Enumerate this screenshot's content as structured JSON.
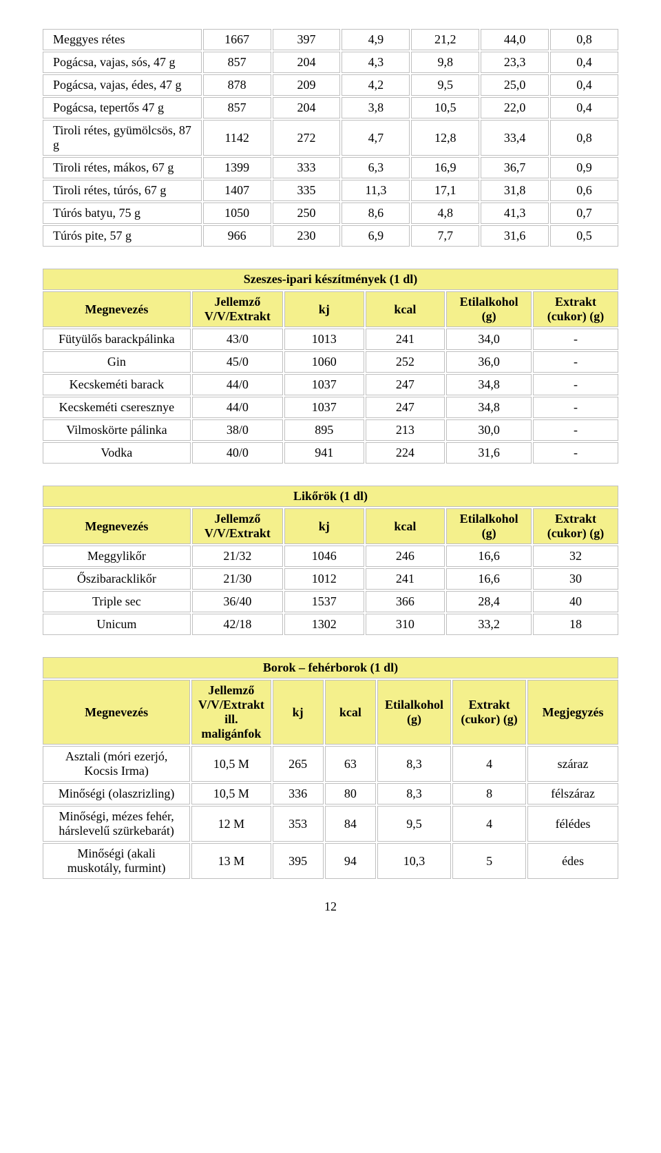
{
  "table1": {
    "rows": [
      {
        "name": "Meggyes rétes",
        "c1": "1667",
        "c2": "397",
        "c3": "4,9",
        "c4": "21,2",
        "c5": "44,0",
        "c6": "0,8"
      },
      {
        "name": "Pogácsa, vajas, sós, 47 g",
        "c1": "857",
        "c2": "204",
        "c3": "4,3",
        "c4": "9,8",
        "c5": "23,3",
        "c6": "0,4"
      },
      {
        "name": "Pogácsa, vajas, édes, 47 g",
        "c1": "878",
        "c2": "209",
        "c3": "4,2",
        "c4": "9,5",
        "c5": "25,0",
        "c6": "0,4"
      },
      {
        "name": "Pogácsa, tepertős 47 g",
        "c1": "857",
        "c2": "204",
        "c3": "3,8",
        "c4": "10,5",
        "c5": "22,0",
        "c6": "0,4"
      },
      {
        "name": "Tiroli rétes, gyümölcsös, 87 g",
        "c1": "1142",
        "c2": "272",
        "c3": "4,7",
        "c4": "12,8",
        "c5": "33,4",
        "c6": "0,8"
      },
      {
        "name": "Tiroli  rétes, mákos, 67 g",
        "c1": "1399",
        "c2": "333",
        "c3": "6,3",
        "c4": "16,9",
        "c5": "36,7",
        "c6": "0,9"
      },
      {
        "name": "Tiroli rétes, túrós, 67 g",
        "c1": "1407",
        "c2": "335",
        "c3": "11,3",
        "c4": "17,1",
        "c5": "31,8",
        "c6": "0,6"
      },
      {
        "name": "Túrós batyu, 75 g",
        "c1": "1050",
        "c2": "250",
        "c3": "8,6",
        "c4": "4,8",
        "c5": "41,3",
        "c6": "0,7"
      },
      {
        "name": "Túrós pite, 57 g",
        "c1": "966",
        "c2": "230",
        "c3": "6,9",
        "c4": "7,7",
        "c5": "31,6",
        "c6": "0,5"
      }
    ]
  },
  "table2": {
    "title": "Szeszes-ipari készítmények (1 dl)",
    "headers": {
      "h1": "Megnevezés",
      "h2": "Jellemző V/V/Extrakt",
      "h3": "kj",
      "h4": "kcal",
      "h5": "Etilalkohol (g)",
      "h6": "Extrakt (cukor) (g)"
    },
    "rows": [
      {
        "name": "Fütyülős barackpálinka",
        "c1": "43/0",
        "c2": "1013",
        "c3": "241",
        "c4": "34,0",
        "c5": "-"
      },
      {
        "name": "Gin",
        "c1": "45/0",
        "c2": "1060",
        "c3": "252",
        "c4": "36,0",
        "c5": "-"
      },
      {
        "name": "Kecskeméti barack",
        "c1": "44/0",
        "c2": "1037",
        "c3": "247",
        "c4": "34,8",
        "c5": "-"
      },
      {
        "name": "Kecskeméti cseresznye",
        "c1": "44/0",
        "c2": "1037",
        "c3": "247",
        "c4": "34,8",
        "c5": "-"
      },
      {
        "name": "Vilmoskörte pálinka",
        "c1": "38/0",
        "c2": "895",
        "c3": "213",
        "c4": "30,0",
        "c5": "-"
      },
      {
        "name": "Vodka",
        "c1": "40/0",
        "c2": "941",
        "c3": "224",
        "c4": "31,6",
        "c5": "-"
      }
    ]
  },
  "table3": {
    "title": "Likőrök (1 dl)",
    "headers": {
      "h1": "Megnevezés",
      "h2": "Jellemző V/V/Extrakt",
      "h3": "kj",
      "h4": "kcal",
      "h5": "Etilalkohol (g)",
      "h6": "Extrakt (cukor) (g)"
    },
    "rows": [
      {
        "name": "Meggylikőr",
        "c1": "21/32",
        "c2": "1046",
        "c3": "246",
        "c4": "16,6",
        "c5": "32"
      },
      {
        "name": "Őszibaracklikőr",
        "c1": "21/30",
        "c2": "1012",
        "c3": "241",
        "c4": "16,6",
        "c5": "30"
      },
      {
        "name": "Triple sec",
        "c1": "36/40",
        "c2": "1537",
        "c3": "366",
        "c4": "28,4",
        "c5": "40"
      },
      {
        "name": "Unicum",
        "c1": "42/18",
        "c2": "1302",
        "c3": "310",
        "c4": "33,2",
        "c5": "18"
      }
    ]
  },
  "table4": {
    "title": "Borok – fehérborok (1 dl)",
    "headers": {
      "h1": "Megnevezés",
      "h2": "Jellemző V/V/Extrakt ill. maligánfok",
      "h3": "kj",
      "h4": "kcal",
      "h5": "Etilalkohol (g)",
      "h6": "Extrakt (cukor) (g)",
      "h7": "Megjegyzés"
    },
    "rows": [
      {
        "name": "Asztali (móri ezerjó, Kocsis Irma)",
        "c1": "10,5 M",
        "c2": "265",
        "c3": "63",
        "c4": "8,3",
        "c5": "4",
        "c6": "száraz"
      },
      {
        "name": "Minőségi (olaszrizling)",
        "c1": "10,5 M",
        "c2": "336",
        "c3": "80",
        "c4": "8,3",
        "c5": "8",
        "c6": "félszáraz"
      },
      {
        "name": "Minőségi, mézes fehér, hárslevelű szürkebarát)",
        "c1": "12 M",
        "c2": "353",
        "c3": "84",
        "c4": "9,5",
        "c5": "4",
        "c6": "félédes"
      },
      {
        "name": "Minőségi (akali muskotály, furmint)",
        "c1": "13 M",
        "c2": "395",
        "c3": "94",
        "c4": "10,3",
        "c5": "5",
        "c6": "édes"
      }
    ]
  },
  "page_number": "12",
  "col_widths": {
    "t1": [
      "28%",
      "12%",
      "12%",
      "12%",
      "12%",
      "12%",
      "12%"
    ],
    "t2": [
      "26%",
      "16%",
      "14%",
      "14%",
      "15%",
      "15%"
    ],
    "t3": [
      "26%",
      "16%",
      "14%",
      "14%",
      "15%",
      "15%"
    ],
    "t4": [
      "26%",
      "14%",
      "9%",
      "9%",
      "13%",
      "13%",
      "16%"
    ]
  },
  "colors": {
    "header_bg": "#f4f08c",
    "border": "#bfbfbf",
    "cell_bg": "#ffffff"
  }
}
